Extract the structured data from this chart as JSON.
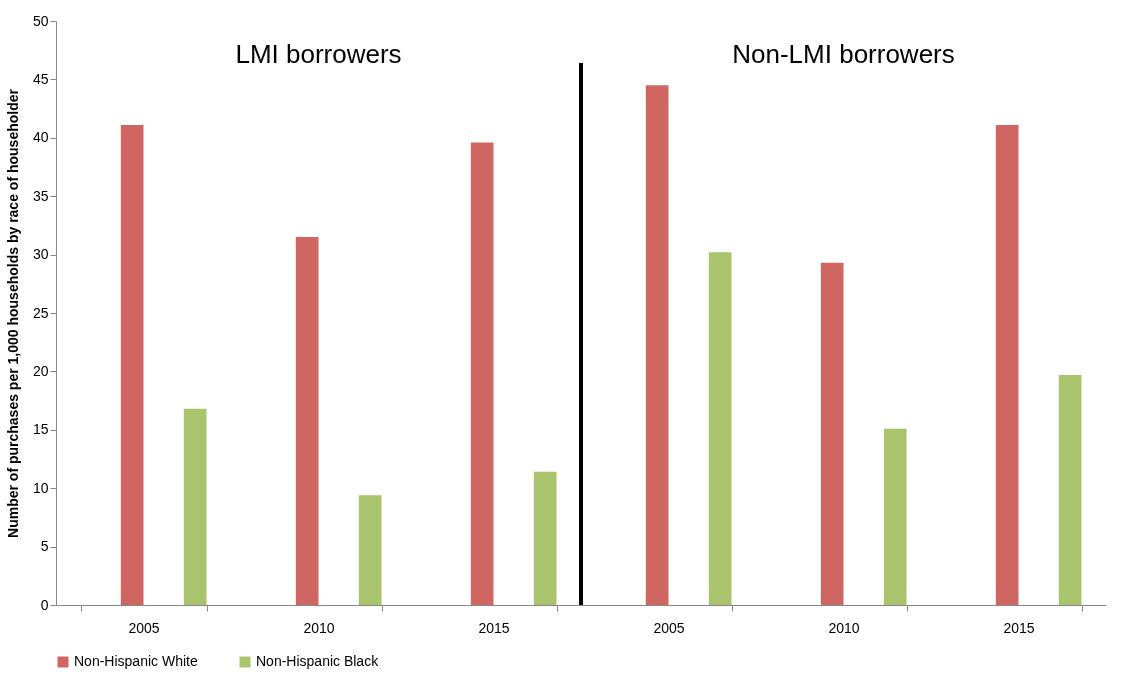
{
  "chart_data": {
    "type": "bar",
    "ylabel": "Number of purchases per 1,000 households by race of householder",
    "categories": [
      "2005",
      "2010",
      "2015",
      "2005",
      "2010",
      "2015"
    ],
    "series": [
      {
        "name": "Non-Hispanic White",
        "color": "#cf6662",
        "values": [
          41.1,
          31.5,
          39.6,
          44.5,
          29.3,
          41.1
        ]
      },
      {
        "name": "Non-Hispanic Black",
        "color": "#a9c46c",
        "values": [
          16.8,
          9.4,
          11.4,
          30.2,
          15.1,
          19.7
        ]
      }
    ],
    "ylim": [
      0,
      50
    ],
    "yticks": [
      0,
      5,
      10,
      15,
      20,
      25,
      30,
      35,
      40,
      45,
      50
    ],
    "annotations": [
      "LMI borrowers",
      "Non-LMI borrowers"
    ],
    "grid": false,
    "legend": "bottom"
  }
}
